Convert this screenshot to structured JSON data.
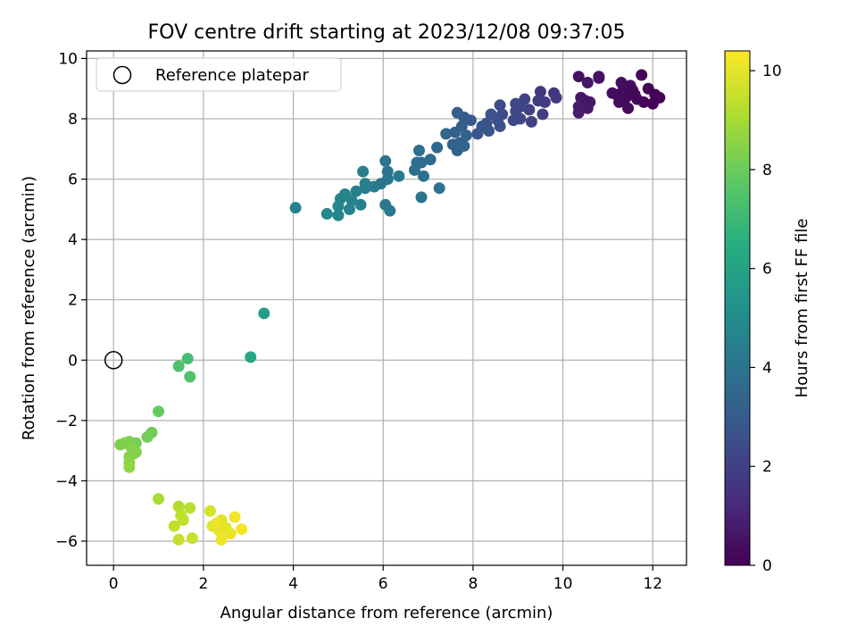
{
  "chart_data": {
    "type": "scatter",
    "title": "FOV centre drift starting at 2023/12/08 09:37:05",
    "xlabel": "Angular distance from reference (arcmin)",
    "ylabel": "Rotation from reference (arcmin)",
    "xlim": [
      -0.6,
      12.75
    ],
    "ylim": [
      -6.8,
      10.25
    ],
    "xticks": [
      0,
      2,
      4,
      6,
      8,
      10,
      12
    ],
    "yticks": [
      -6,
      -4,
      -2,
      0,
      2,
      4,
      6,
      8,
      10
    ],
    "xtick_labels": [
      "0",
      "2",
      "4",
      "6",
      "8",
      "10",
      "12"
    ],
    "ytick_labels": [
      "−6",
      "−4",
      "−2",
      "0",
      "2",
      "4",
      "6",
      "8",
      "10"
    ],
    "grid": true,
    "legend": {
      "placement": "top-left",
      "label": "Reference platepar"
    },
    "reference_point": {
      "x": 0,
      "y": 0
    },
    "colorbar": {
      "label": "Hours from first FF file",
      "range": [
        0,
        10.4
      ],
      "ticks": [
        0,
        2,
        4,
        6,
        8,
        10
      ],
      "tick_labels": [
        "0",
        "2",
        "4",
        "6",
        "8",
        "10"
      ],
      "colormap": "viridis"
    },
    "points": [
      {
        "x": 11.75,
        "y": 9.45,
        "h": 0.2
      },
      {
        "x": 11.5,
        "y": 8.9,
        "h": 0.1
      },
      {
        "x": 11.6,
        "y": 8.8,
        "h": 0.15
      },
      {
        "x": 11.4,
        "y": 8.7,
        "h": 0.2
      },
      {
        "x": 11.2,
        "y": 8.8,
        "h": 0.25
      },
      {
        "x": 11.1,
        "y": 8.85,
        "h": 0.3
      },
      {
        "x": 11.3,
        "y": 9.2,
        "h": 0.35
      },
      {
        "x": 11.5,
        "y": 9.1,
        "h": 0.4
      },
      {
        "x": 11.45,
        "y": 8.35,
        "h": 0.3
      },
      {
        "x": 11.8,
        "y": 8.55,
        "h": 0.1
      },
      {
        "x": 12.0,
        "y": 8.5,
        "h": 0.05
      },
      {
        "x": 12.15,
        "y": 8.7,
        "h": 0.05
      },
      {
        "x": 11.9,
        "y": 9.0,
        "h": 0.15
      },
      {
        "x": 11.65,
        "y": 8.65,
        "h": 0.2
      },
      {
        "x": 12.05,
        "y": 8.8,
        "h": 0.1
      },
      {
        "x": 11.25,
        "y": 8.55,
        "h": 0.3
      },
      {
        "x": 11.55,
        "y": 8.95,
        "h": 0.25
      },
      {
        "x": 11.35,
        "y": 9.05,
        "h": 0.3
      },
      {
        "x": 10.35,
        "y": 9.4,
        "h": 0.5
      },
      {
        "x": 10.55,
        "y": 9.2,
        "h": 0.6
      },
      {
        "x": 10.8,
        "y": 9.4,
        "h": 0.55
      },
      {
        "x": 10.8,
        "y": 9.35,
        "h": 0.5
      },
      {
        "x": 10.4,
        "y": 8.7,
        "h": 0.65
      },
      {
        "x": 10.6,
        "y": 8.55,
        "h": 0.7
      },
      {
        "x": 10.35,
        "y": 8.4,
        "h": 0.75
      },
      {
        "x": 10.35,
        "y": 8.2,
        "h": 0.8
      },
      {
        "x": 10.55,
        "y": 8.35,
        "h": 0.7
      },
      {
        "x": 10.5,
        "y": 8.6,
        "h": 0.65
      },
      {
        "x": 9.8,
        "y": 8.85,
        "h": 1.6
      },
      {
        "x": 9.85,
        "y": 8.7,
        "h": 1.65
      },
      {
        "x": 9.5,
        "y": 8.9,
        "h": 1.7
      },
      {
        "x": 9.45,
        "y": 8.6,
        "h": 1.75
      },
      {
        "x": 9.6,
        "y": 8.55,
        "h": 1.8
      },
      {
        "x": 9.55,
        "y": 8.15,
        "h": 1.9
      },
      {
        "x": 9.25,
        "y": 8.3,
        "h": 2.0
      },
      {
        "x": 9.3,
        "y": 7.9,
        "h": 2.05
      },
      {
        "x": 9.15,
        "y": 8.65,
        "h": 2.1
      },
      {
        "x": 9.05,
        "y": 8.4,
        "h": 2.15
      },
      {
        "x": 8.95,
        "y": 8.25,
        "h": 2.2
      },
      {
        "x": 8.9,
        "y": 7.95,
        "h": 2.25
      },
      {
        "x": 8.95,
        "y": 8.5,
        "h": 2.2
      },
      {
        "x": 9.05,
        "y": 8.0,
        "h": 2.3
      },
      {
        "x": 8.6,
        "y": 8.45,
        "h": 2.4
      },
      {
        "x": 8.65,
        "y": 8.15,
        "h": 2.45
      },
      {
        "x": 8.55,
        "y": 7.95,
        "h": 2.5
      },
      {
        "x": 8.6,
        "y": 7.75,
        "h": 2.55
      },
      {
        "x": 8.4,
        "y": 8.15,
        "h": 2.6
      },
      {
        "x": 8.3,
        "y": 7.85,
        "h": 2.65
      },
      {
        "x": 8.35,
        "y": 7.6,
        "h": 2.7
      },
      {
        "x": 8.2,
        "y": 7.75,
        "h": 2.75
      },
      {
        "x": 8.1,
        "y": 7.5,
        "h": 2.8
      },
      {
        "x": 7.95,
        "y": 7.95,
        "h": 2.9
      },
      {
        "x": 7.8,
        "y": 8.05,
        "h": 3.0
      },
      {
        "x": 7.65,
        "y": 8.2,
        "h": 3.05
      },
      {
        "x": 7.75,
        "y": 7.75,
        "h": 3.1
      },
      {
        "x": 7.6,
        "y": 7.55,
        "h": 3.15
      },
      {
        "x": 7.7,
        "y": 7.2,
        "h": 3.2
      },
      {
        "x": 7.55,
        "y": 7.15,
        "h": 3.25
      },
      {
        "x": 7.65,
        "y": 6.95,
        "h": 3.3
      },
      {
        "x": 7.8,
        "y": 7.1,
        "h": 3.35
      },
      {
        "x": 7.4,
        "y": 7.5,
        "h": 3.4
      },
      {
        "x": 7.85,
        "y": 7.45,
        "h": 3.3
      },
      {
        "x": 7.2,
        "y": 7.05,
        "h": 3.5
      },
      {
        "x": 7.05,
        "y": 6.65,
        "h": 3.6
      },
      {
        "x": 6.85,
        "y": 6.55,
        "h": 3.65
      },
      {
        "x": 6.75,
        "y": 6.55,
        "h": 3.7
      },
      {
        "x": 6.8,
        "y": 6.95,
        "h": 3.75
      },
      {
        "x": 6.7,
        "y": 6.3,
        "h": 3.8
      },
      {
        "x": 6.9,
        "y": 6.1,
        "h": 3.85
      },
      {
        "x": 7.25,
        "y": 5.7,
        "h": 3.9
      },
      {
        "x": 6.85,
        "y": 5.4,
        "h": 3.95
      },
      {
        "x": 6.05,
        "y": 6.6,
        "h": 4.0
      },
      {
        "x": 6.1,
        "y": 6.25,
        "h": 4.05
      },
      {
        "x": 6.1,
        "y": 6.0,
        "h": 4.1
      },
      {
        "x": 6.35,
        "y": 6.1,
        "h": 4.15
      },
      {
        "x": 5.95,
        "y": 5.85,
        "h": 4.2
      },
      {
        "x": 5.8,
        "y": 5.75,
        "h": 4.25
      },
      {
        "x": 5.6,
        "y": 5.7,
        "h": 4.3
      },
      {
        "x": 5.55,
        "y": 6.25,
        "h": 4.35
      },
      {
        "x": 5.6,
        "y": 5.85,
        "h": 4.4
      },
      {
        "x": 5.4,
        "y": 5.6,
        "h": 4.45
      },
      {
        "x": 5.5,
        "y": 5.15,
        "h": 4.5
      },
      {
        "x": 5.3,
        "y": 5.3,
        "h": 4.55
      },
      {
        "x": 5.25,
        "y": 5.0,
        "h": 4.6
      },
      {
        "x": 5.15,
        "y": 5.5,
        "h": 4.65
      },
      {
        "x": 5.05,
        "y": 5.35,
        "h": 4.7
      },
      {
        "x": 5.0,
        "y": 5.1,
        "h": 4.75
      },
      {
        "x": 5.0,
        "y": 4.8,
        "h": 4.8
      },
      {
        "x": 4.75,
        "y": 4.85,
        "h": 4.85
      },
      {
        "x": 6.05,
        "y": 5.15,
        "h": 4.1
      },
      {
        "x": 6.15,
        "y": 4.95,
        "h": 4.2
      },
      {
        "x": 4.05,
        "y": 5.05,
        "h": 4.5
      },
      {
        "x": 3.35,
        "y": 1.55,
        "h": 5.8
      },
      {
        "x": 3.05,
        "y": 0.1,
        "h": 6.1
      },
      {
        "x": 1.65,
        "y": 0.05,
        "h": 7.2
      },
      {
        "x": 1.45,
        "y": -0.2,
        "h": 7.4
      },
      {
        "x": 1.7,
        "y": -0.55,
        "h": 7.5
      },
      {
        "x": 1.0,
        "y": -1.7,
        "h": 7.9
      },
      {
        "x": 0.85,
        "y": -2.4,
        "h": 8.1
      },
      {
        "x": 0.75,
        "y": -2.55,
        "h": 8.15
      },
      {
        "x": 0.5,
        "y": -2.75,
        "h": 8.2
      },
      {
        "x": 0.35,
        "y": -2.7,
        "h": 8.25
      },
      {
        "x": 0.15,
        "y": -2.8,
        "h": 8.3
      },
      {
        "x": 0.25,
        "y": -2.75,
        "h": 8.35
      },
      {
        "x": 0.4,
        "y": -2.9,
        "h": 8.4
      },
      {
        "x": 0.5,
        "y": -3.05,
        "h": 8.45
      },
      {
        "x": 0.35,
        "y": -3.2,
        "h": 8.5
      },
      {
        "x": 0.35,
        "y": -3.4,
        "h": 8.55
      },
      {
        "x": 0.35,
        "y": -3.55,
        "h": 8.6
      },
      {
        "x": 0.45,
        "y": -3.1,
        "h": 8.4
      },
      {
        "x": 1.0,
        "y": -4.6,
        "h": 9.0
      },
      {
        "x": 1.45,
        "y": -4.85,
        "h": 9.2
      },
      {
        "x": 1.7,
        "y": -4.9,
        "h": 9.3
      },
      {
        "x": 1.5,
        "y": -5.15,
        "h": 9.35
      },
      {
        "x": 1.55,
        "y": -5.3,
        "h": 9.4
      },
      {
        "x": 1.35,
        "y": -5.5,
        "h": 9.45
      },
      {
        "x": 1.45,
        "y": -5.95,
        "h": 9.5
      },
      {
        "x": 1.75,
        "y": -5.9,
        "h": 9.55
      },
      {
        "x": 2.15,
        "y": -5.0,
        "h": 9.8
      },
      {
        "x": 2.4,
        "y": -5.3,
        "h": 9.9
      },
      {
        "x": 2.2,
        "y": -5.5,
        "h": 9.95
      },
      {
        "x": 2.35,
        "y": -5.65,
        "h": 10.0
      },
      {
        "x": 2.5,
        "y": -5.55,
        "h": 10.05
      },
      {
        "x": 2.6,
        "y": -5.75,
        "h": 10.1
      },
      {
        "x": 2.4,
        "y": -5.95,
        "h": 10.15
      },
      {
        "x": 2.7,
        "y": -5.2,
        "h": 10.2
      },
      {
        "x": 2.85,
        "y": -5.6,
        "h": 10.25
      },
      {
        "x": 2.3,
        "y": -5.4,
        "h": 10.1
      }
    ]
  }
}
